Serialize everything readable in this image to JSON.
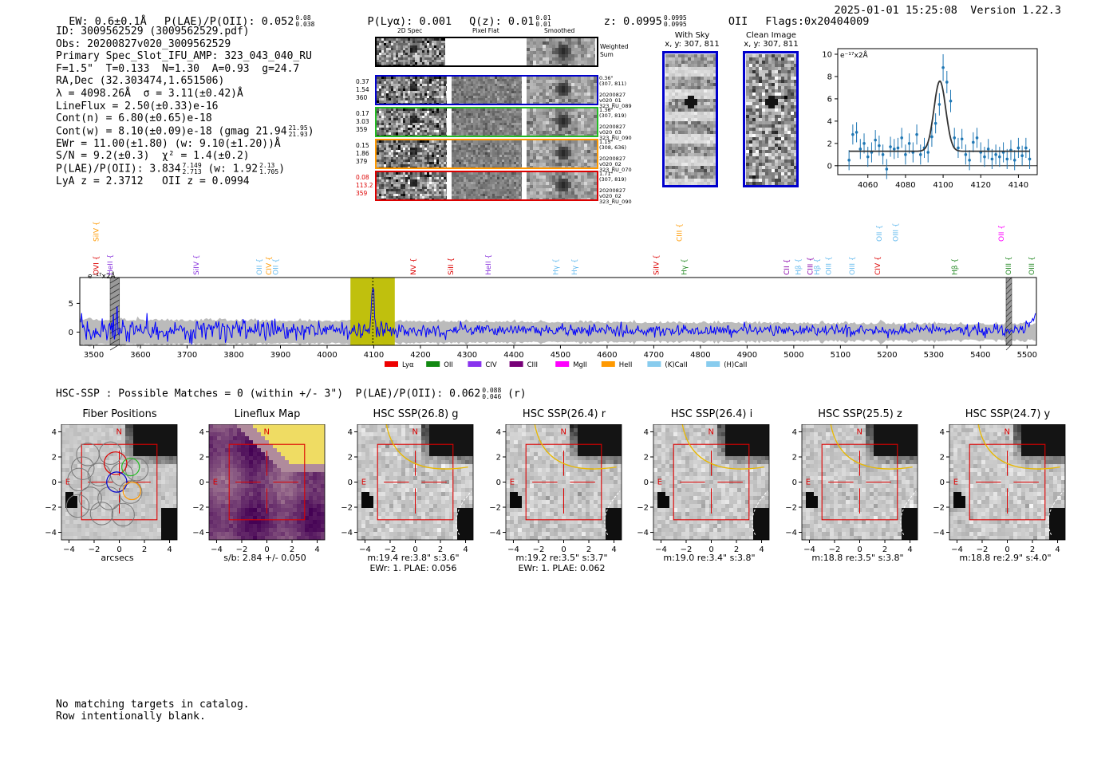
{
  "header": {
    "ew": "EW: 0.6±0.1Å",
    "plae": "P(LAE)/P(OII): 0.052",
    "plae_hi": "0.08",
    "plae_lo": "0.038",
    "plya": "P(Lyα): 0.001",
    "qz": "Q(z): 0.01",
    "qz_hi": "0.01",
    "qz_lo": "0.01",
    "z": "z: 0.0995",
    "z_hi": "0.0995",
    "z_lo": "0.0995",
    "z_line": "OII",
    "flags": "Flags:0x20404009",
    "timestamp": "2025-01-01 15:25:08",
    "version": "Version 1.22.3"
  },
  "info": {
    "id": "ID: 3009562529 (3009562529.pdf)",
    "obs": "Obs: 20200827v020_3009562529",
    "primary": "Primary Spec_Slot_IFU_AMP: 323_043_040_RU",
    "fwhm": "F=1.5\"  T=0.133  N=1.30  A=0.93  g=24.7",
    "radec": "RA,Dec (32.303474,1.651506)",
    "lambda": "λ = 4098.26Å  σ = 3.11(±0.42)Å",
    "lineflux": "LineFlux = 2.50(±0.33)e-16",
    "contn": "Cont(n) = 6.80(±0.65)e-18",
    "contw": "Cont(w) = 8.10(±0.09)e-18 (gmag 21.94",
    "gmag_hi": "21.95",
    "gmag_lo": "21.93",
    "ewr": "EWr = 11.00(±1.80) (w: 9.10(±1.20))Å",
    "sn": "S/N = 9.2(±0.3)  χ² = 1.4(±0.2)",
    "plae2": "P(LAE)/P(OII): 3.834",
    "plae2_hi": "7.149",
    "plae2_lo": "2.713",
    "plae2_w": "(w: 1.92",
    "plae2_w_hi": "2.13",
    "plae2_w_lo": "1.705",
    "lya_z": "LyA z = 2.3712   OII z = 0.0994"
  },
  "stamps": {
    "col_headers": [
      "2D Spec",
      "Pixel Flat",
      "Smoothed"
    ],
    "weighted": "Weighted\nSum",
    "rows": [
      {
        "left": [
          "0.37",
          "1.54",
          "360"
        ],
        "right": [
          "0.36\"",
          "(307, 811)",
          "",
          "20200827",
          "v020_01",
          "323_RU_089"
        ],
        "color": "#0000cc",
        "leftColor": "#000"
      },
      {
        "left": [
          "0.17",
          "3.03",
          "359"
        ],
        "right": [
          "1.36\"",
          "(307, 819)",
          "",
          "20200827",
          "v020_03",
          "323_RU_090"
        ],
        "color": "#22bb22",
        "leftColor": "#000"
      },
      {
        "left": [
          "0.15",
          "1.86",
          "379"
        ],
        "right": [
          "1.15\"",
          "(308, 636)",
          "",
          "20200827",
          "v020_02",
          "323_RU_070"
        ],
        "color": "#ff9900",
        "leftColor": "#000"
      },
      {
        "left": [
          "0.08",
          "113.2",
          "359"
        ],
        "right": [
          "1.71\"",
          "(307, 819)",
          "",
          "20200827",
          "v020_02",
          "323_RU_090"
        ],
        "color": "#dd0000",
        "leftColor": "#dd0000"
      }
    ]
  },
  "sky_panels": [
    {
      "title": "With Sky",
      "coords": "x, y: 307, 811"
    },
    {
      "title": "Clean Image",
      "coords": "x, y: 307, 811"
    }
  ],
  "zoom_chart_meta": {
    "ylabel": "e⁻¹⁷x2Å"
  },
  "full_chart_meta": {
    "ylabel": "e⁻¹⁷x2Å"
  },
  "line_labels_top": [
    {
      "name": "SiIV",
      "color": "#ff9900",
      "wave": 3505
    },
    {
      "name": "CIII",
      "color": "#ff9900",
      "wave": 4755
    },
    {
      "name": "OII",
      "color": "#66bbee",
      "wave": 5183
    },
    {
      "name": "OIII",
      "color": "#66bbee",
      "wave": 5218
    },
    {
      "name": "OII",
      "color": "#ff00ff",
      "wave": 5445
    }
  ],
  "line_labels": [
    {
      "name": "OVI",
      "color": "#dd0000",
      "wave": 3505
    },
    {
      "name": "HeII",
      "color": "#8833dd",
      "wave": 3535
    },
    {
      "name": "SiIV",
      "color": "#8833dd",
      "wave": 3720
    },
    {
      "name": "OII",
      "color": "#66bbee",
      "wave": 3855
    },
    {
      "name": "CIV",
      "color": "#ff9900",
      "wave": 3875
    },
    {
      "name": "OII",
      "color": "#66bbee",
      "wave": 3890
    },
    {
      "name": "NV",
      "color": "#dd0000",
      "wave": 4185
    },
    {
      "name": "SiII",
      "color": "#dd0000",
      "wave": 4265
    },
    {
      "name": "HeII",
      "color": "#8833dd",
      "wave": 4345
    },
    {
      "name": "Hγ",
      "color": "#66bbee",
      "wave": 4490
    },
    {
      "name": "Hγ",
      "color": "#66bbee",
      "wave": 4530
    },
    {
      "name": "SiIV",
      "color": "#dd0000",
      "wave": 4705
    },
    {
      "name": "Hγ",
      "color": "#228822",
      "wave": 4765
    },
    {
      "name": "CII",
      "color": "#8800aa",
      "wave": 4985
    },
    {
      "name": "Hβ",
      "color": "#66bbee",
      "wave": 5010
    },
    {
      "name": "CIII",
      "color": "#8800aa",
      "wave": 5035
    },
    {
      "name": "Hβ",
      "color": "#66bbee",
      "wave": 5050
    },
    {
      "name": "OIII",
      "color": "#66bbee",
      "wave": 5075
    },
    {
      "name": "OIII",
      "color": "#66bbee",
      "wave": 5125
    },
    {
      "name": "CIV",
      "color": "#dd0000",
      "wave": 5180
    },
    {
      "name": "Hβ",
      "color": "#228822",
      "wave": 5345
    },
    {
      "name": "OIII",
      "color": "#228822",
      "wave": 5460
    },
    {
      "name": "OIII",
      "color": "#228822",
      "wave": 5510
    }
  ],
  "legend": [
    {
      "name": "Lyα",
      "color": "#ee0000"
    },
    {
      "name": "OII",
      "color": "#118811"
    },
    {
      "name": "CIV",
      "color": "#8833ee"
    },
    {
      "name": "CIII",
      "color": "#770077"
    },
    {
      "name": "MgII",
      "color": "#ff00ff"
    },
    {
      "name": "HeII",
      "color": "#ff9900"
    },
    {
      "name": "(K)CaII",
      "color": "#88ccee"
    },
    {
      "name": "(H)CaII",
      "color": "#88ccee"
    }
  ],
  "hsc": {
    "summary": "HSC-SSP : Possible Matches = 0 (within +/- 3\")  P(LAE)/P(OII): 0.062",
    "summary_hi": "0.088",
    "summary_lo": "0.046",
    "summary_tail": "(r)"
  },
  "cutouts": [
    {
      "title": "Fiber Positions",
      "caption1": "arcsecs",
      "caption2": ""
    },
    {
      "title": "Lineflux Map",
      "caption1": "s/b: 2.84 +/- 0.050",
      "caption2": ""
    },
    {
      "title": "HSC SSP(26.8) g",
      "caption1": "m:19.4  re:3.8\"  s:3.6\"",
      "caption2": "EWr: 1. PLAE: 0.056"
    },
    {
      "title": "HSC SSP(26.4) r",
      "caption1": "m:19.2  re:3.5\"  s:3.7\"",
      "caption2": "EWr: 1. PLAE: 0.062"
    },
    {
      "title": "HSC SSP(26.4) i",
      "caption1": "m:19.0  re:3.4\"  s:3.8\"",
      "caption2": ""
    },
    {
      "title": "HSC SSP(25.5) z",
      "caption1": "m:18.8  re:3.5\"  s:3.8\"",
      "caption2": ""
    },
    {
      "title": "HSC SSP(24.7) y",
      "caption1": "m:18.8  re:2.9\"  s:4.0\"",
      "caption2": ""
    }
  ],
  "cutout_axis": {
    "xticks": [
      "−4",
      "−2",
      "0",
      "2",
      "4"
    ],
    "yticks": [
      "4",
      "2",
      "0",
      "−2",
      "−4"
    ],
    "n_label": "N",
    "e_label": "E"
  },
  "footer": {
    "line1": "No matching targets in catalog.",
    "line2": "Row intentionally blank."
  },
  "chart_data": [
    {
      "type": "scatter",
      "title": "",
      "xlabel": "",
      "ylabel": "e⁻¹⁷x2Å",
      "xlim": [
        4044,
        4150
      ],
      "ylim": [
        -0.8,
        10.5
      ],
      "xticks": [
        4060,
        4080,
        4100,
        4120,
        4140
      ],
      "yticks": [
        0,
        2,
        4,
        6,
        8,
        10
      ],
      "series": [
        {
          "name": "data",
          "x": [
            4050,
            4052,
            4054,
            4056,
            4058,
            4060,
            4062,
            4064,
            4066,
            4068,
            4070,
            4072,
            4074,
            4076,
            4078,
            4080,
            4082,
            4084,
            4086,
            4088,
            4090,
            4092,
            4094,
            4096,
            4098,
            4100,
            4102,
            4104,
            4106,
            4108,
            4110,
            4112,
            4114,
            4116,
            4118,
            4120,
            4122,
            4124,
            4126,
            4128,
            4130,
            4132,
            4134,
            4136,
            4138,
            4140,
            4142,
            4144,
            4146
          ],
          "y": [
            0.5,
            2.8,
            3.0,
            1.5,
            2.0,
            0.8,
            1.2,
            2.3,
            1.8,
            1.0,
            -0.3,
            1.7,
            1.5,
            1.6,
            2.5,
            1.0,
            2.0,
            1.2,
            2.8,
            1.0,
            1.6,
            1.2,
            2.6,
            3.8,
            5.5,
            8.8,
            7.5,
            5.8,
            2.5,
            1.6,
            2.4,
            1.0,
            0.5,
            2.1,
            2.5,
            1.2,
            0.8,
            1.5,
            0.6,
            1.0,
            0.8,
            1.2,
            0.6,
            1.4,
            0.5,
            1.6,
            0.9,
            1.6,
            0.6
          ],
          "yerr": [
            0.9,
            0.9,
            0.9,
            0.9,
            0.9,
            0.9,
            0.9,
            0.9,
            0.9,
            0.9,
            0.9,
            0.9,
            0.9,
            0.9,
            0.9,
            0.9,
            0.9,
            0.9,
            0.9,
            0.9,
            0.9,
            0.9,
            0.9,
            0.9,
            1.0,
            1.2,
            1.0,
            1.0,
            0.9,
            0.9,
            0.9,
            0.9,
            0.9,
            0.9,
            0.9,
            0.9,
            0.9,
            0.9,
            0.9,
            0.9,
            0.9,
            0.9,
            0.9,
            0.9,
            0.9,
            0.9,
            0.9,
            0.9,
            0.9
          ]
        },
        {
          "name": "fit",
          "model": "gaussian",
          "amplitude": 6.3,
          "center": 4098.26,
          "sigma": 3.11,
          "baseline": 1.3
        }
      ]
    },
    {
      "type": "line",
      "title": "",
      "xlabel": "",
      "ylabel": "e⁻¹⁷x2Å",
      "xlim": [
        3470,
        5520
      ],
      "ylim": [
        -2.3,
        9.5
      ],
      "xticks": [
        3500,
        3600,
        3700,
        3800,
        3900,
        4000,
        4100,
        4200,
        4300,
        4400,
        4500,
        4600,
        4700,
        4800,
        4900,
        5000,
        5100,
        5200,
        5300,
        5400,
        5500
      ],
      "yticks": [
        0,
        5
      ],
      "highlight_range": [
        4050,
        4145
      ],
      "marker_wave": 4098,
      "masked_ranges": [
        [
          3535,
          3555
        ],
        [
          5455,
          5467
        ]
      ],
      "series": [
        {
          "name": "flux",
          "color": "#0000ff",
          "continuum": 0.3,
          "noise_amplitude_blue": 2.2,
          "noise_amplitude_red": 0.9,
          "line_peak": 8.5,
          "line_center": 4098
        },
        {
          "name": "error",
          "color": "#bbbbbb",
          "band_blue": 2.0,
          "band_red": 1.2
        }
      ]
    }
  ]
}
